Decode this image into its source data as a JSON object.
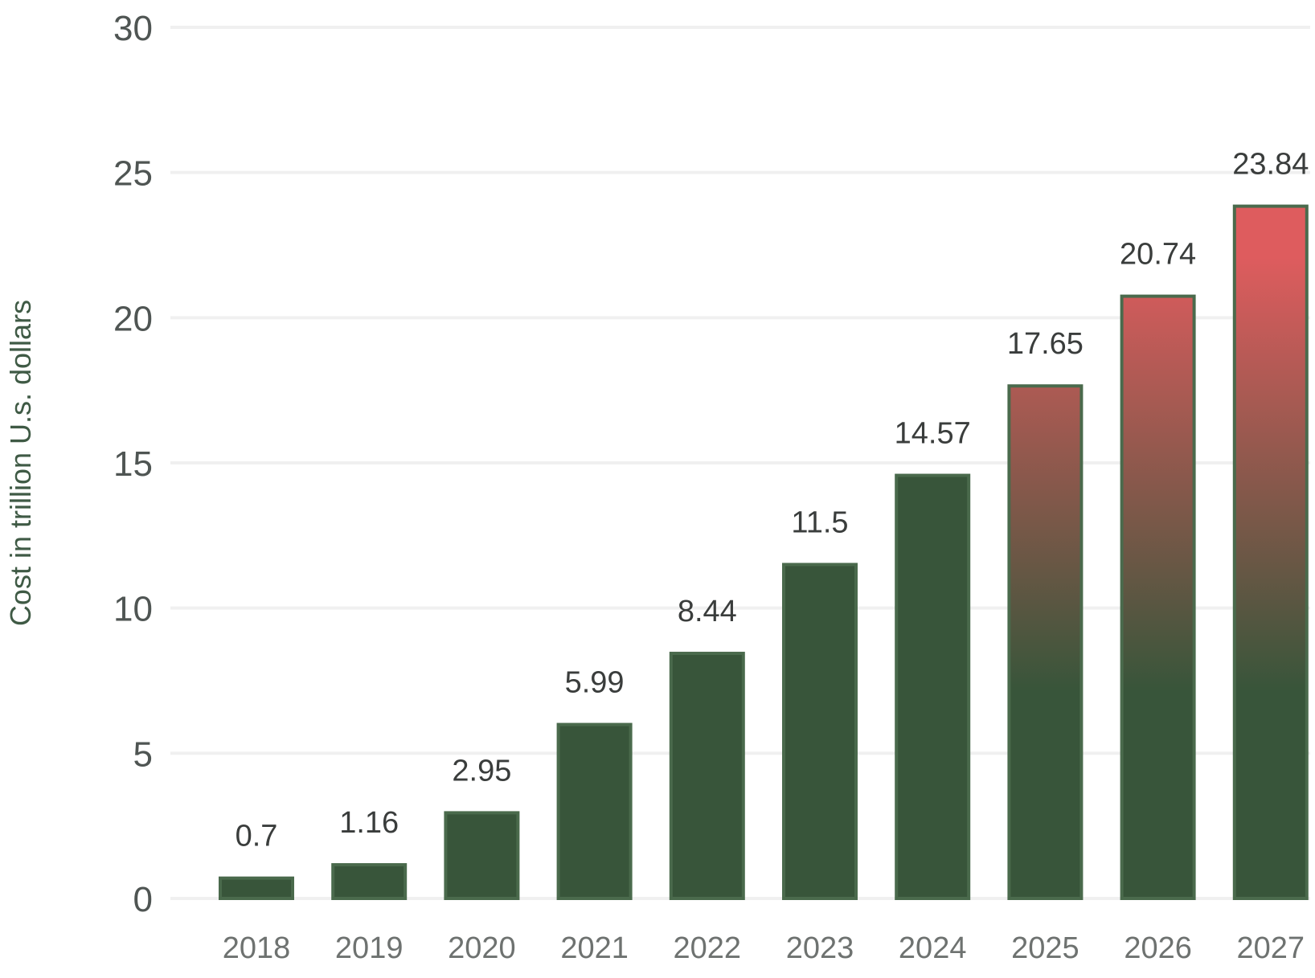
{
  "chart_data": {
    "type": "bar",
    "title": "",
    "xlabel": "",
    "ylabel": "Cost in trillion U.s. dollars",
    "categories": [
      "2018",
      "2019",
      "2020",
      "2021",
      "2022",
      "2023",
      "2024",
      "2025",
      "2026",
      "2027"
    ],
    "values": [
      0.7,
      1.16,
      2.95,
      5.99,
      8.44,
      11.5,
      14.57,
      17.65,
      20.74,
      23.84
    ],
    "data_labels": [
      "0.7",
      "1.16",
      "2.95",
      "5.99",
      "8.44",
      "11.5",
      "14.57",
      "17.65",
      "20.74",
      "23.84"
    ],
    "ylim": [
      0,
      30
    ],
    "yticks": [
      0,
      5,
      10,
      15,
      20,
      25,
      30
    ],
    "ytick_labels": [
      "0",
      "5",
      "10",
      "15",
      "20",
      "25",
      "30"
    ],
    "grid": "horizontal",
    "legend": "none",
    "colors": {
      "bar_fill": "#38553a",
      "bar_stroke": "#4a6a4c",
      "forecast_gradient_top": "#de5c5e",
      "forecast_gradient_bottom": "#38553a",
      "gridline": "#f0f0f0"
    },
    "forecast_years": [
      "2025",
      "2026",
      "2027"
    ]
  }
}
